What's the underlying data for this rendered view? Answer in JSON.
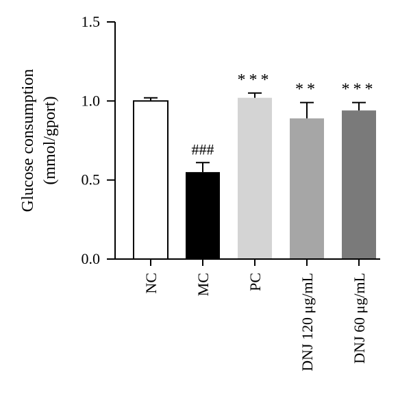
{
  "chart_data": {
    "type": "bar",
    "categories": [
      "NC",
      "MC",
      "PC",
      "DNJ 120 μg/mL",
      "DNJ 60 μg/mL"
    ],
    "values": [
      1.0,
      0.55,
      1.02,
      0.89,
      0.94
    ],
    "errors": [
      0.02,
      0.06,
      0.03,
      0.1,
      0.05
    ],
    "annotations": [
      "",
      "###",
      "***",
      "**",
      "***"
    ],
    "ylabel_lines": [
      "Glucose consumption",
      "(mmol/gport)"
    ],
    "ylim": [
      0,
      1.5
    ],
    "yticks": [
      0.0,
      0.5,
      1.0,
      1.5
    ],
    "ytick_labels": [
      "0.0",
      "0.5",
      "1.0",
      "1.5"
    ],
    "colors": [
      "#ffffff",
      "#000000",
      "#d4d4d4",
      "#a6a6a6",
      "#7a7a7a"
    ],
    "grid": false
  }
}
